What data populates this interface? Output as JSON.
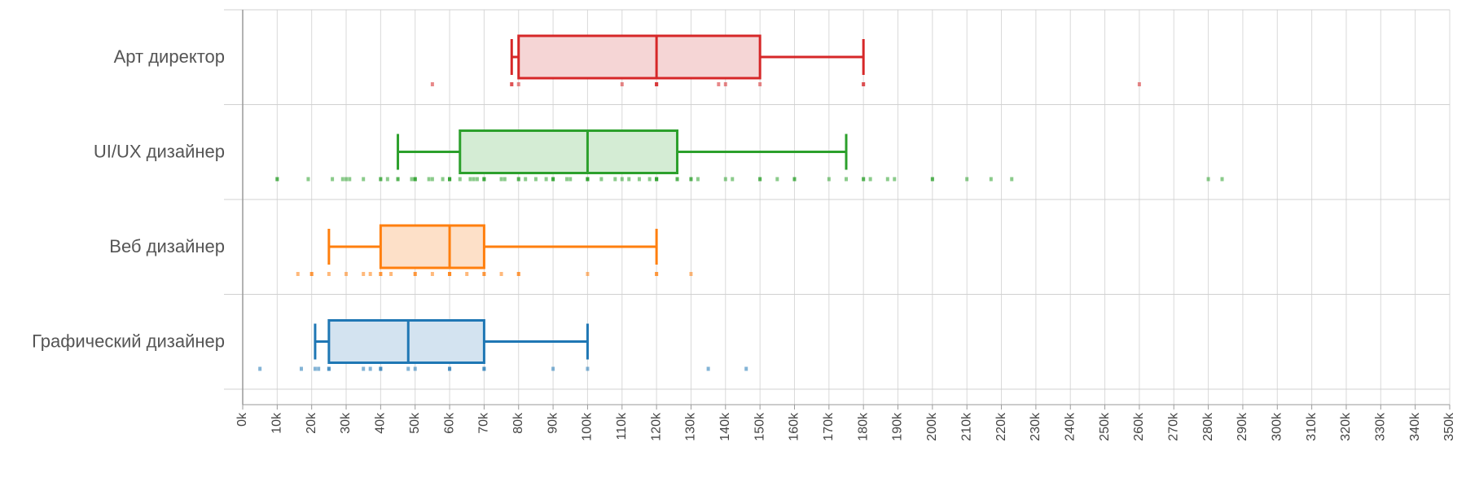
{
  "chart_data": {
    "type": "box",
    "x_unit_suffix": "k",
    "xlim": [
      0,
      350
    ],
    "x_tick_step": 10,
    "grid": true,
    "colors": {
      "art_director": "#d62728",
      "uiux": "#2ca02c",
      "web": "#ff7f0e",
      "graphic": "#1f77b4",
      "grid": "#d9d9d9",
      "axis": "#9a9a9a"
    },
    "categories": [
      {
        "label": "Арт директор",
        "color": "#d62728",
        "fill": "#f5d5d5",
        "whisker_low": 78,
        "q1": 80,
        "median": 120,
        "q3": 150,
        "whisker_high": 180,
        "points": [
          55,
          78,
          78,
          80,
          110,
          120,
          120,
          120,
          138,
          140,
          150,
          180,
          180,
          260
        ]
      },
      {
        "label": "UI/UX дизайнер",
        "color": "#2ca02c",
        "fill": "#d4ecd4",
        "whisker_low": 45,
        "q1": 63,
        "median": 100,
        "q3": 126,
        "whisker_high": 175,
        "points": [
          10,
          10,
          19,
          26,
          29,
          30,
          31,
          35,
          40,
          40,
          42,
          45,
          45,
          49,
          50,
          50,
          50,
          54,
          55,
          58,
          60,
          60,
          60,
          60,
          63,
          66,
          67,
          68,
          70,
          70,
          70,
          75,
          76,
          80,
          80,
          82,
          85,
          88,
          90,
          90,
          90,
          94,
          95,
          100,
          100,
          100,
          100,
          104,
          108,
          110,
          112,
          115,
          118,
          120,
          120,
          120,
          120,
          126,
          126,
          130,
          130,
          132,
          140,
          142,
          150,
          150,
          155,
          160,
          160,
          170,
          175,
          180,
          180,
          182,
          187,
          189,
          200,
          200,
          210,
          217,
          223,
          280,
          284
        ]
      },
      {
        "label": "Веб дизайнер",
        "color": "#ff7f0e",
        "fill": "#fde0c8",
        "whisker_low": 25,
        "q1": 40,
        "median": 60,
        "q3": 70,
        "whisker_high": 120,
        "points": [
          16,
          20,
          20,
          25,
          30,
          35,
          37,
          40,
          40,
          43,
          50,
          50,
          55,
          60,
          60,
          60,
          65,
          70,
          70,
          75,
          80,
          80,
          100,
          120,
          120,
          130
        ]
      },
      {
        "label": "Графический дизайнер",
        "color": "#1f77b4",
        "fill": "#d3e3f0",
        "whisker_low": 21,
        "q1": 25,
        "median": 48,
        "q3": 70,
        "whisker_high": 100,
        "points": [
          5,
          17,
          21,
          22,
          25,
          25,
          35,
          37,
          40,
          40,
          48,
          50,
          60,
          60,
          70,
          70,
          90,
          100,
          135,
          146
        ]
      }
    ]
  }
}
